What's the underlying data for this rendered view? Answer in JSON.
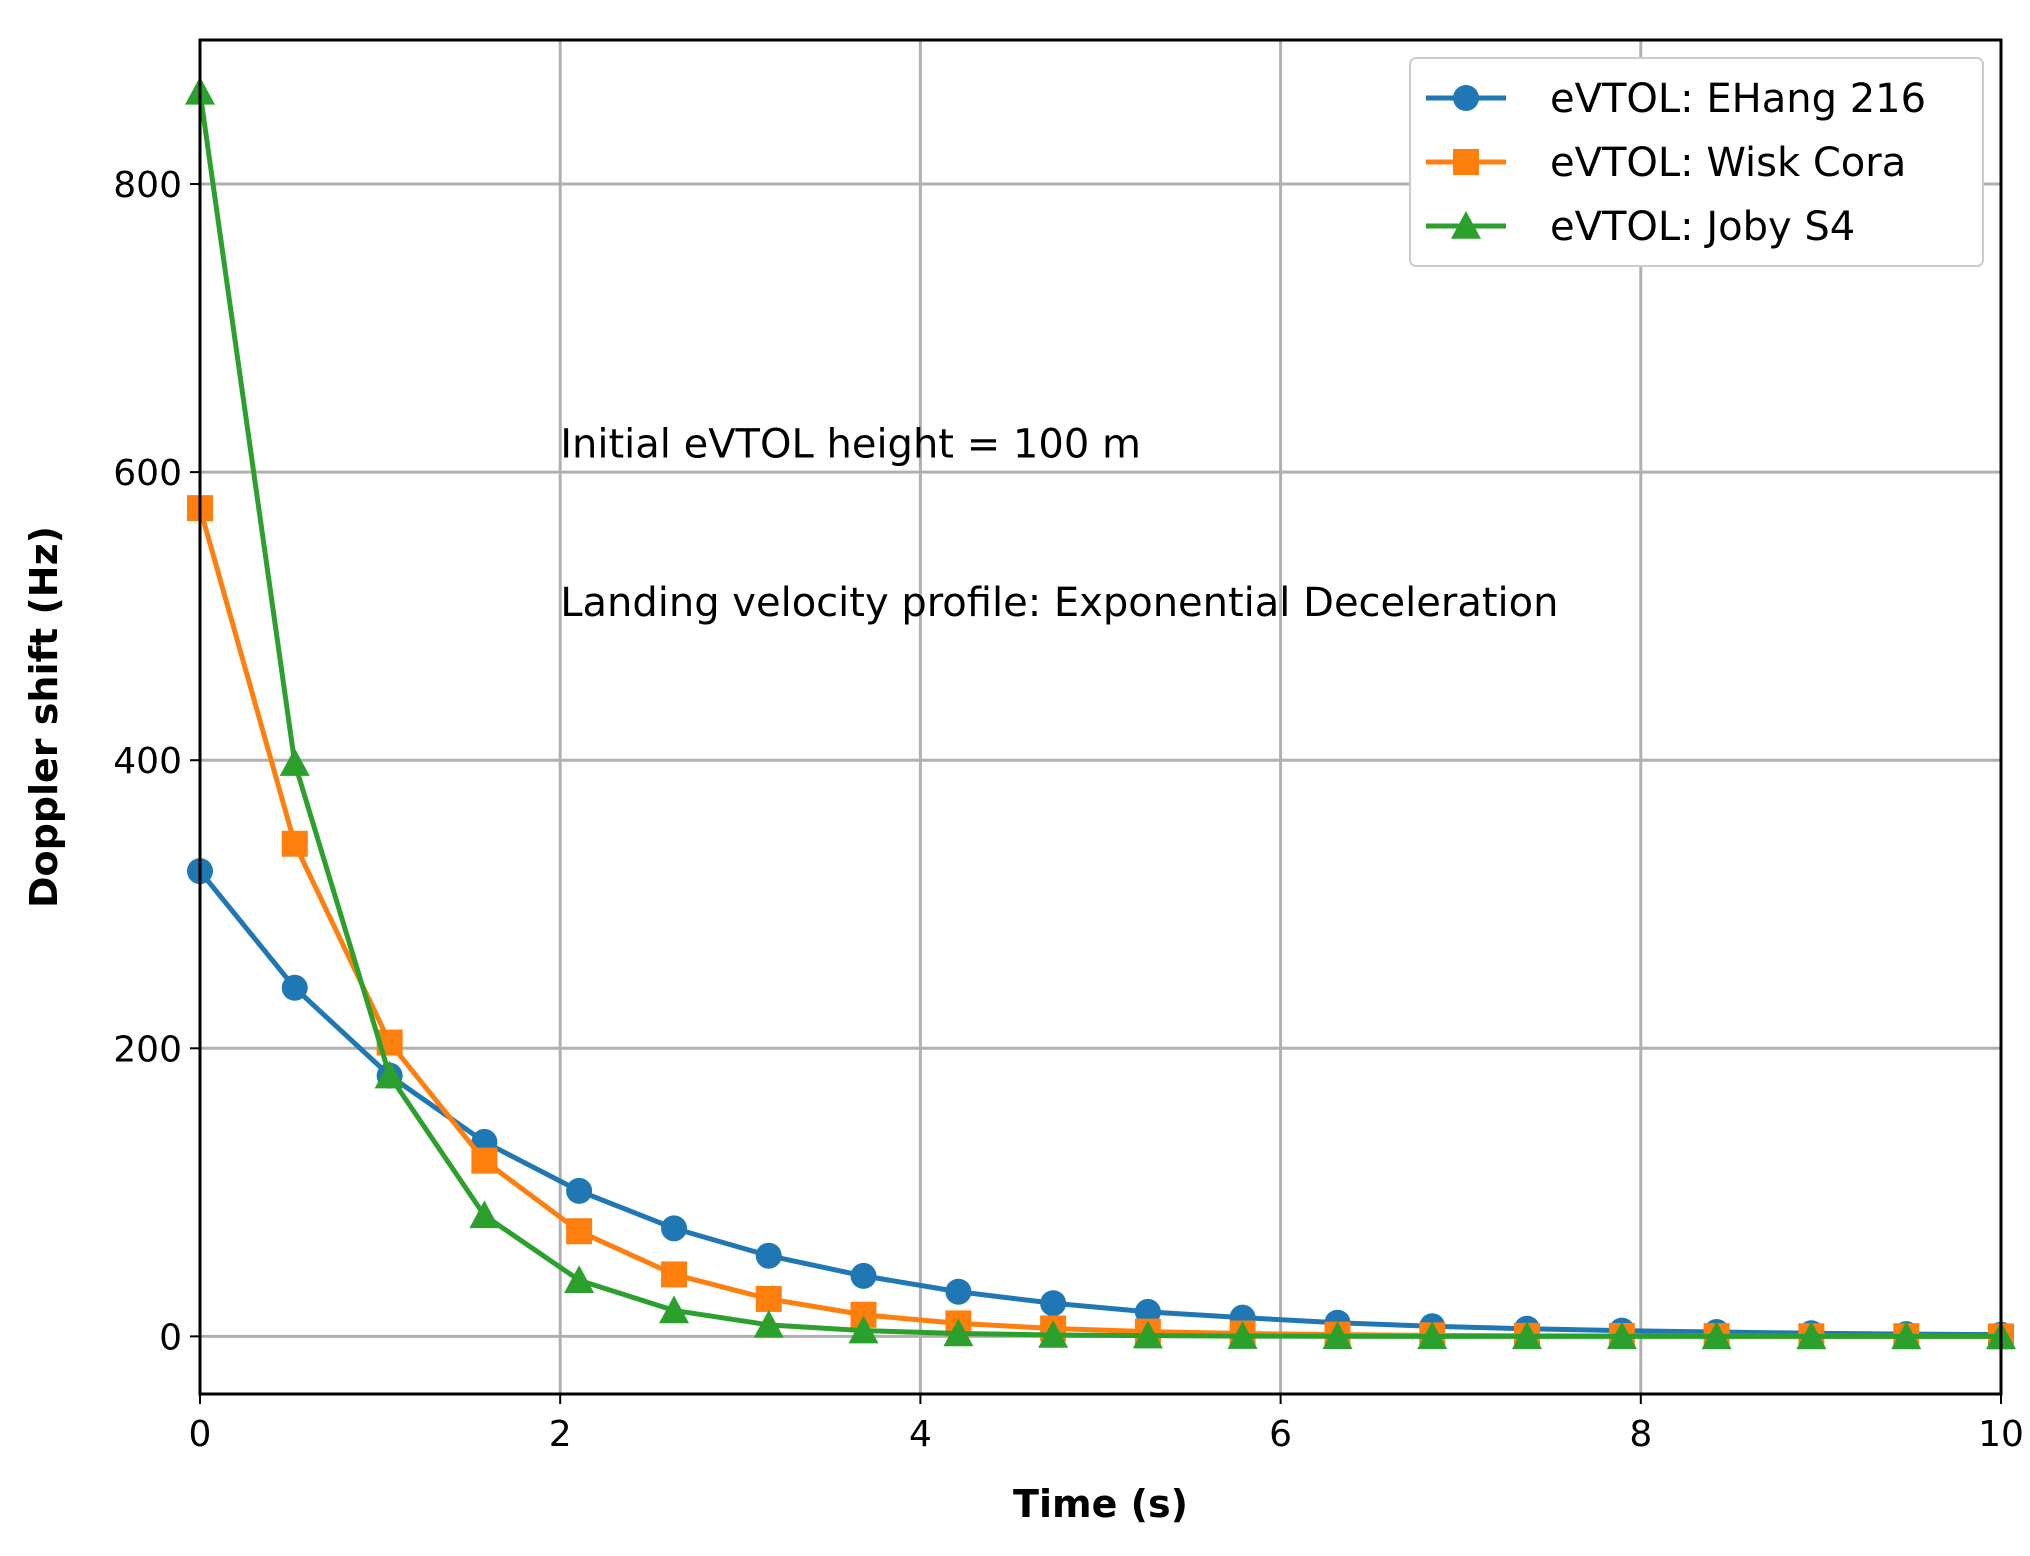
{
  "chart_data": {
    "type": "line",
    "title": "",
    "xlabel": "Time (s)",
    "ylabel": "Doppler shift (Hz)",
    "xlim": [
      0,
      10
    ],
    "ylim": [
      -40,
      900
    ],
    "x_ticks": [
      0,
      2,
      4,
      6,
      8,
      10
    ],
    "y_ticks": [
      0,
      200,
      400,
      600,
      800
    ],
    "grid": true,
    "legend_position": "top-right",
    "x": [
      0,
      0.526,
      1.053,
      1.579,
      2.105,
      2.632,
      3.158,
      3.684,
      4.211,
      4.737,
      5.263,
      5.789,
      6.316,
      6.842,
      7.368,
      7.895,
      8.421,
      8.947,
      9.474,
      10
    ],
    "series": [
      {
        "name": "eVTOL: EHang 216",
        "color": "#1f77b4",
        "marker": "circle",
        "values": [
          323,
          242,
          181,
          135,
          101,
          75,
          56,
          42,
          31,
          23,
          17,
          13,
          9.5,
          7,
          5.3,
          4,
          3,
          2.2,
          1.6,
          1.2
        ]
      },
      {
        "name": "eVTOL: Wisk Cora",
        "color": "#ff7f0e",
        "marker": "square",
        "values": [
          575,
          342,
          204,
          122,
          73,
          43,
          26,
          15,
          9,
          5.5,
          3.3,
          2,
          1.2,
          0.7,
          0.4,
          0.3,
          0.2,
          0.1,
          0.1,
          0
        ]
      },
      {
        "name": "eVTOL: Joby S4",
        "color": "#2ca02c",
        "marker": "triangle",
        "values": [
          864,
          398,
          181,
          84,
          39,
          18,
          8,
          4,
          2,
          1,
          0.5,
          0.2,
          0.1,
          0,
          0,
          0,
          0,
          0,
          0,
          0
        ]
      }
    ],
    "annotations": [
      {
        "text": "Initial eVTOL height = 100 m",
        "x": 2.0,
        "y": 610
      },
      {
        "text": "Landing velocity profile: Exponential Deceleration",
        "x": 2.0,
        "y": 500
      }
    ]
  }
}
